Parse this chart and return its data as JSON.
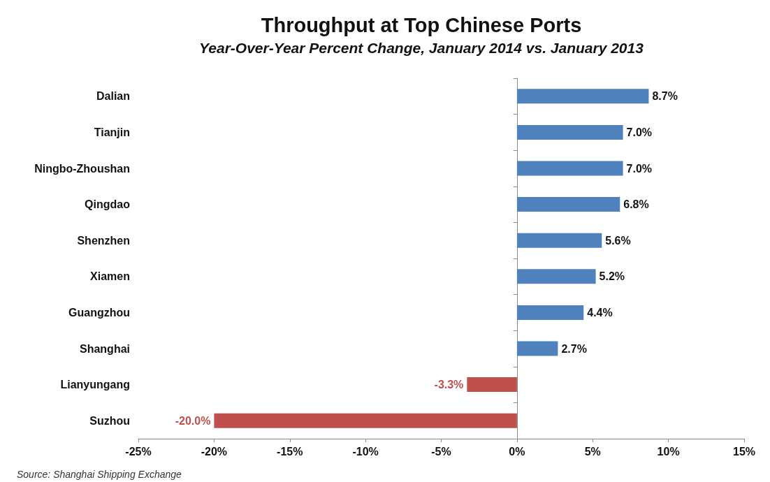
{
  "chart_data": {
    "type": "bar",
    "orientation": "horizontal",
    "title": "Throughput at Top Chinese Ports",
    "subtitle": "Year-Over-Year Percent Change, January 2014 vs. January 2013",
    "categories": [
      "Dalian",
      "Tianjin",
      "Ningbo-Zhoushan",
      "Qingdao",
      "Shenzhen",
      "Xiamen",
      "Guangzhou",
      "Shanghai",
      "Lianyungang",
      "Suzhou"
    ],
    "values": [
      8.7,
      7.0,
      7.0,
      6.8,
      5.6,
      5.2,
      4.4,
      2.7,
      -3.3,
      -20.0
    ],
    "value_labels": [
      "8.7%",
      "7.0%",
      "7.0%",
      "6.8%",
      "5.6%",
      "5.2%",
      "4.4%",
      "2.7%",
      "-3.3%",
      "-20.0%"
    ],
    "colors": [
      "#4f81bd",
      "#4f81bd",
      "#4f81bd",
      "#4f81bd",
      "#4f81bd",
      "#4f81bd",
      "#4f81bd",
      "#4f81bd",
      "#c0504d",
      "#c0504d"
    ],
    "xlim": [
      -25,
      15
    ],
    "xticks": [
      {
        "value": -25,
        "label": "-25%"
      },
      {
        "value": -20,
        "label": "-20%"
      },
      {
        "value": -15,
        "label": "-15%"
      },
      {
        "value": -10,
        "label": "-10%"
      },
      {
        "value": -5,
        "label": "-5%"
      },
      {
        "value": 0,
        "label": "0%"
      },
      {
        "value": 5,
        "label": "5%"
      },
      {
        "value": 10,
        "label": "10%"
      },
      {
        "value": 15,
        "label": "15%"
      }
    ],
    "annotations": [
      "Source: Shanghai Shipping Exchange"
    ]
  }
}
